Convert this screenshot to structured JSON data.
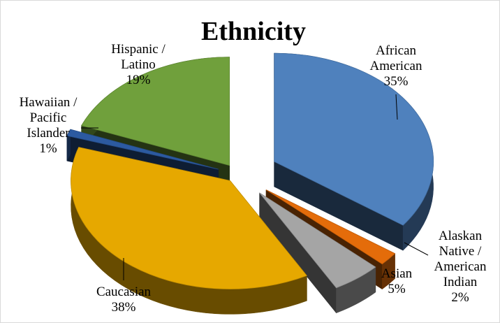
{
  "chart_data": {
    "type": "pie",
    "title": "Ethnicity",
    "slices": [
      {
        "name_lines": [
          "African",
          "American"
        ],
        "percent_label": "35%",
        "value": 35,
        "color": "#4f81bd"
      },
      {
        "name_lines": [
          "Alaskan",
          "Native /",
          "American",
          "Indian"
        ],
        "percent_label": "2%",
        "value": 2,
        "color": "#e46c0a"
      },
      {
        "name_lines": [
          "Asian"
        ],
        "percent_label": "5%",
        "value": 5,
        "color": "#a5a5a5"
      },
      {
        "name_lines": [
          "Caucasian"
        ],
        "percent_label": "38%",
        "value": 38,
        "color": "#e6a800"
      },
      {
        "name_lines": [
          "Hawaiian /",
          "Pacific",
          "Islander"
        ],
        "percent_label": "1%",
        "value": 1,
        "color": "#2c5aa0"
      },
      {
        "name_lines": [
          "Hispanic /",
          "Latino"
        ],
        "percent_label": "19%",
        "value": 19,
        "color": "#70a03c"
      }
    ],
    "style": "3d-exploded",
    "legend": "none"
  }
}
